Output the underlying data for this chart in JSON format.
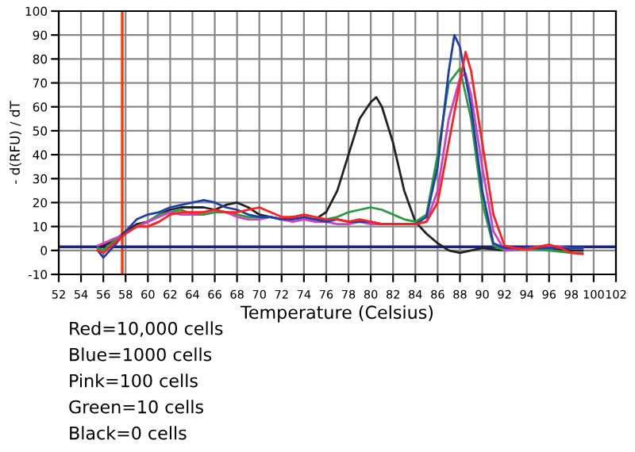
{
  "chart_data": {
    "type": "line",
    "xlabel": "Temperature (Celsius)",
    "ylabel": "- d(RFU) / dT",
    "xlim": [
      52,
      102
    ],
    "ylim": [
      -10,
      100
    ],
    "xticks": [
      52,
      54,
      56,
      58,
      60,
      62,
      64,
      66,
      68,
      70,
      72,
      74,
      76,
      78,
      80,
      82,
      84,
      86,
      88,
      90,
      92,
      94,
      96,
      98,
      100,
      102
    ],
    "yticks": [
      -10,
      0,
      10,
      20,
      30,
      40,
      50,
      60,
      70,
      80,
      90,
      100
    ],
    "grid": true,
    "legend": false,
    "marker": "none",
    "line_style": "solid",
    "ref_lines": [
      {
        "axis": "x",
        "value": 57.7,
        "color": "#ff3300"
      },
      {
        "axis": "y",
        "value": 1.5,
        "color": "#1a237e"
      }
    ],
    "annotations": [
      "Red=10,000 cells",
      "Blue=1000 cells",
      "Pink=100 cells",
      "Green=10 cells",
      "Black=0 cells"
    ],
    "series": [
      {
        "color": "#ff2020",
        "x": [
          55.5,
          56,
          57,
          58,
          59,
          60,
          61,
          62,
          63,
          64,
          65,
          66,
          67,
          68,
          69,
          70,
          71,
          72,
          73,
          74,
          75,
          76,
          77,
          78,
          79,
          80,
          81,
          82,
          83,
          84,
          85,
          86,
          87,
          88,
          88.5,
          89,
          90,
          91,
          92,
          93,
          94,
          95,
          96,
          97,
          98,
          99
        ],
        "values": [
          0,
          -1,
          3,
          7,
          10,
          10,
          12,
          15,
          16,
          16,
          16,
          17,
          16,
          16,
          17,
          18,
          16,
          14,
          14,
          15,
          14,
          13,
          13,
          12,
          13,
          12,
          11,
          11,
          11,
          11,
          12,
          20,
          45,
          70,
          83,
          75,
          45,
          15,
          2,
          1,
          0.5,
          1.5,
          2.5,
          1,
          -1,
          -1.5
        ]
      },
      {
        "color": "#1f3fa8",
        "x": [
          55.5,
          56,
          57,
          58,
          59,
          60,
          61,
          62,
          63,
          64,
          65,
          66,
          67,
          68,
          69,
          70,
          71,
          72,
          73,
          74,
          75,
          76,
          77,
          78,
          79,
          80,
          81,
          82,
          83,
          84,
          85,
          86,
          87,
          87.5,
          88,
          89,
          90,
          91,
          92,
          94,
          96,
          98,
          99
        ],
        "values": [
          0,
          -3,
          2,
          8,
          13,
          15,
          16,
          18,
          19,
          20,
          21,
          20,
          18,
          17,
          15,
          14,
          14,
          13,
          13,
          14,
          13,
          12,
          13,
          12,
          12,
          12,
          11,
          11,
          11,
          11,
          14,
          35,
          75,
          90,
          85,
          60,
          25,
          3,
          1,
          1,
          1,
          1,
          1
        ]
      },
      {
        "color": "#d040c0",
        "x": [
          55.5,
          56,
          57,
          58,
          59,
          60,
          61,
          62,
          63,
          64,
          65,
          66,
          67,
          68,
          69,
          70,
          71,
          72,
          73,
          74,
          75,
          76,
          77,
          78,
          79,
          80,
          81,
          82,
          83,
          84,
          85,
          86,
          87,
          88,
          88.5,
          89,
          90,
          91,
          92,
          94,
          96,
          98,
          99
        ],
        "values": [
          2,
          3,
          5,
          7,
          10,
          12,
          14,
          16,
          15,
          15,
          16,
          17,
          16,
          14,
          13,
          13,
          14,
          13,
          12,
          13,
          12,
          12,
          11,
          11,
          12,
          11,
          11,
          11,
          11,
          11,
          12,
          25,
          55,
          72,
          74,
          65,
          35,
          8,
          0,
          1,
          2,
          1,
          1
        ]
      },
      {
        "color": "#2a9a40",
        "x": [
          55.5,
          56,
          57,
          58,
          59,
          60,
          61,
          62,
          63,
          64,
          65,
          66,
          67,
          68,
          69,
          70,
          71,
          72,
          73,
          74,
          75,
          76,
          77,
          78,
          79,
          80,
          81,
          82,
          83,
          84,
          85,
          86,
          87,
          88,
          89,
          90,
          91,
          92,
          94,
          96,
          98,
          99
        ],
        "values": [
          1,
          0,
          4,
          7,
          10,
          12,
          15,
          16,
          17,
          15,
          15,
          16,
          16,
          15,
          14,
          14,
          14,
          13,
          14,
          13,
          13,
          13,
          14,
          16,
          17,
          18,
          17,
          15,
          13,
          12,
          15,
          40,
          70,
          76,
          55,
          20,
          2,
          0,
          1,
          0,
          -1,
          -1
        ]
      },
      {
        "color": "#222222",
        "x": [
          55.5,
          56,
          57,
          58,
          59,
          60,
          61,
          62,
          63,
          64,
          65,
          66,
          67,
          68,
          69,
          70,
          71,
          72,
          73,
          74,
          75,
          76,
          77,
          78,
          79,
          80,
          80.5,
          81,
          82,
          83,
          84,
          85,
          86,
          87,
          88,
          89,
          90,
          92,
          94,
          96,
          98,
          99
        ],
        "values": [
          1,
          2,
          4,
          8,
          11,
          12,
          15,
          17,
          18,
          18,
          18,
          17,
          19,
          20,
          18,
          15,
          14,
          13,
          14,
          13,
          13,
          16,
          25,
          40,
          55,
          62,
          64,
          60,
          45,
          25,
          12,
          7,
          3,
          0,
          -1,
          0,
          1,
          0,
          1,
          1,
          0,
          0
        ]
      }
    ]
  }
}
